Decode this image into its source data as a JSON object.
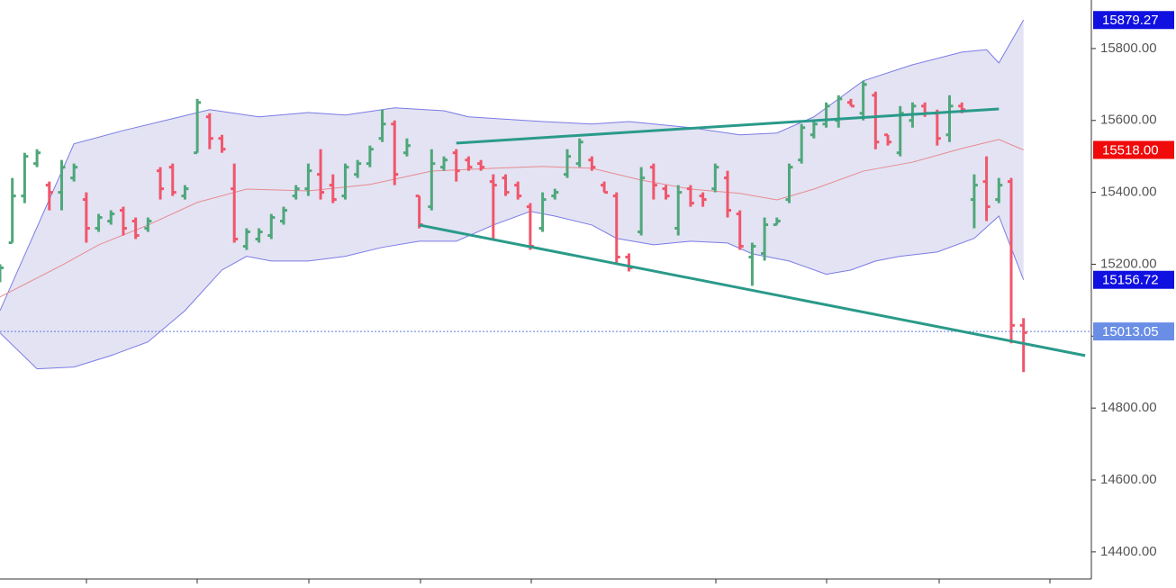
{
  "chart_data": {
    "type": "ohlc",
    "xlim": [
      0,
      88.5
    ],
    "ylim": [
      14312,
      15935
    ],
    "yticks": [
      {
        "value": 14400,
        "label": "14400.00"
      },
      {
        "value": 14600,
        "label": "14600.00"
      },
      {
        "value": 14800,
        "label": "14800.00"
      },
      {
        "value": 15000,
        "label": "15000.00"
      },
      {
        "value": 15200,
        "label": "15200.00"
      },
      {
        "value": 15400,
        "label": "15400.00"
      },
      {
        "value": 15600,
        "label": "15600.00"
      },
      {
        "value": 15800,
        "label": "15800.00"
      }
    ],
    "up_color": "#4fa77a",
    "down_color": "#f0566b",
    "open": [
      15150,
      15260,
      15390,
      15480,
      15420,
      15400,
      15440,
      15380,
      15300,
      15320,
      15350,
      15320,
      15300,
      15460,
      15470,
      15390,
      15510,
      15610,
      15550,
      15410,
      15250,
      15270,
      15280,
      15320,
      15390,
      15410,
      15450,
      15420,
      15390,
      15450,
      15480,
      15550,
      15590,
      15510,
      15390,
      15360,
      15470,
      15510,
      15490,
      15480,
      15430,
      15440,
      15420,
      15360,
      15300,
      15390,
      15450,
      15480,
      15490,
      15420,
      15390,
      15220,
      15290,
      15470,
      15410,
      15300,
      15410,
      15390,
      15410,
      15440,
      15340,
      15220,
      15230,
      15310,
      15380,
      15490,
      15560,
      15590,
      15600,
      15650,
      15620,
      15670,
      15560,
      15510,
      15600,
      15640,
      15620,
      15560,
      15640,
      15380,
      15430,
      15380,
      15430,
      15030
    ],
    "high": [
      15200,
      15440,
      15510,
      15520,
      15430,
      15490,
      15480,
      15400,
      15340,
      15350,
      15360,
      15330,
      15330,
      15470,
      15480,
      15420,
      15660,
      15620,
      15560,
      15480,
      15300,
      15300,
      15340,
      15360,
      15420,
      15480,
      15520,
      15450,
      15480,
      15490,
      15530,
      15630,
      15600,
      15550,
      15390,
      15520,
      15500,
      15520,
      15500,
      15490,
      15450,
      15450,
      15430,
      15370,
      15400,
      15410,
      15520,
      15550,
      15500,
      15430,
      15400,
      15230,
      15470,
      15480,
      15420,
      15420,
      15420,
      15400,
      15480,
      15460,
      15350,
      15260,
      15330,
      15330,
      15480,
      15590,
      15600,
      15650,
      15670,
      15660,
      15710,
      15680,
      15560,
      15640,
      15650,
      15650,
      15630,
      15670,
      15650,
      15450,
      15500,
      15440,
      15440,
      15050
    ],
    "low": [
      15150,
      15260,
      15370,
      15470,
      15350,
      15350,
      15430,
      15260,
      15290,
      15310,
      15280,
      15270,
      15290,
      15380,
      15390,
      15380,
      15510,
      15520,
      15510,
      15260,
      15240,
      15260,
      15270,
      15310,
      15380,
      15390,
      15380,
      15370,
      15380,
      15440,
      15470,
      15540,
      15420,
      15500,
      15300,
      15350,
      15460,
      15430,
      15460,
      15460,
      15270,
      15390,
      15380,
      15240,
      15290,
      15380,
      15440,
      15470,
      15460,
      15400,
      15200,
      15180,
      15280,
      15380,
      15380,
      15280,
      15360,
      15360,
      15400,
      15330,
      15240,
      15140,
      15210,
      15310,
      15370,
      15480,
      15550,
      15580,
      15580,
      15640,
      15600,
      15520,
      15530,
      15500,
      15580,
      15610,
      15530,
      15540,
      15620,
      15300,
      15320,
      15370,
      14980,
      14900
    ],
    "close": [
      15190,
      15390,
      15500,
      15510,
      15400,
      15470,
      15470,
      15300,
      15330,
      15340,
      15300,
      15280,
      15320,
      15410,
      15400,
      15410,
      15650,
      15550,
      15520,
      15270,
      15290,
      15290,
      15330,
      15350,
      15410,
      15460,
      15400,
      15380,
      15470,
      15480,
      15520,
      15590,
      15450,
      15530,
      15310,
      15480,
      15490,
      15460,
      15470,
      15470,
      15420,
      15400,
      15390,
      15250,
      15380,
      15400,
      15500,
      15540,
      15470,
      15400,
      15220,
      15190,
      15440,
      15420,
      15390,
      15400,
      15370,
      15380,
      15470,
      15350,
      15250,
      15250,
      15310,
      15320,
      15470,
      15580,
      15590,
      15640,
      15660,
      15640,
      15700,
      15540,
      15540,
      15620,
      15640,
      15620,
      15550,
      15640,
      15630,
      15420,
      15360,
      15420,
      15030,
      15010
    ],
    "bands": {
      "fill_color": "#e3e3f3",
      "line_color": "#7b7be6",
      "middle_color": "#e88a8f",
      "upper": {
        "x": [
          0,
          6,
          10,
          14,
          17,
          21,
          25,
          28,
          32,
          36,
          38,
          44,
          48,
          51,
          56,
          60,
          63,
          66,
          70,
          74,
          78,
          80,
          81,
          83
        ],
        "values": [
          15071,
          15535,
          15572,
          15605,
          15630,
          15610,
          15622,
          15615,
          15635,
          15627,
          15610,
          15597,
          15590,
          15597,
          15580,
          15560,
          15565,
          15610,
          15710,
          15755,
          15790,
          15797,
          15760,
          15879.27
        ]
      },
      "lower": {
        "x": [
          0,
          3,
          6,
          9,
          12,
          15,
          18,
          20,
          22,
          25,
          28,
          31,
          34,
          37,
          40,
          43,
          45,
          48,
          50,
          53,
          56,
          59,
          61,
          64,
          67,
          69,
          71,
          73,
          76,
          79,
          81,
          83
        ],
        "values": [
          15009,
          14909,
          14914,
          14946,
          14984,
          15071,
          15184,
          15222,
          15209,
          15209,
          15222,
          15247,
          15264,
          15264,
          15309,
          15347,
          15334,
          15309,
          15272,
          15254,
          15264,
          15259,
          15229,
          15209,
          15172,
          15184,
          15209,
          15222,
          15234,
          15272,
          15334,
          15156.72
        ]
      },
      "middle": {
        "x": [
          0,
          5,
          8,
          12,
          16,
          20,
          25,
          30,
          35,
          40,
          44,
          48,
          52,
          56,
          60,
          63,
          66,
          70,
          74,
          78,
          81,
          83
        ],
        "values": [
          15109,
          15197,
          15254,
          15309,
          15372,
          15409,
          15404,
          15422,
          15459,
          15467,
          15472,
          15467,
          15434,
          15409,
          15397,
          15379,
          15409,
          15459,
          15484,
          15522,
          15547,
          15518
        ]
      }
    },
    "trendlines": [
      {
        "color": "#2a9a8a",
        "x": [
          37,
          81
        ],
        "values": [
          15537,
          15632
        ]
      },
      {
        "color": "#2a9a8a",
        "x": [
          34,
          88
        ],
        "values": [
          15309,
          14946
        ]
      }
    ],
    "current_line": {
      "value": 15013.05,
      "color": "#5b7ce0"
    },
    "price_labels": [
      {
        "value": 15879.27,
        "color": "#1010e0"
      },
      {
        "value": 15518,
        "label": "15518.00",
        "color": "#f00a0a"
      },
      {
        "value": 15156.72,
        "color": "#1010e0"
      },
      {
        "value": 15013.05,
        "color": "#6a8ee6"
      }
    ]
  }
}
